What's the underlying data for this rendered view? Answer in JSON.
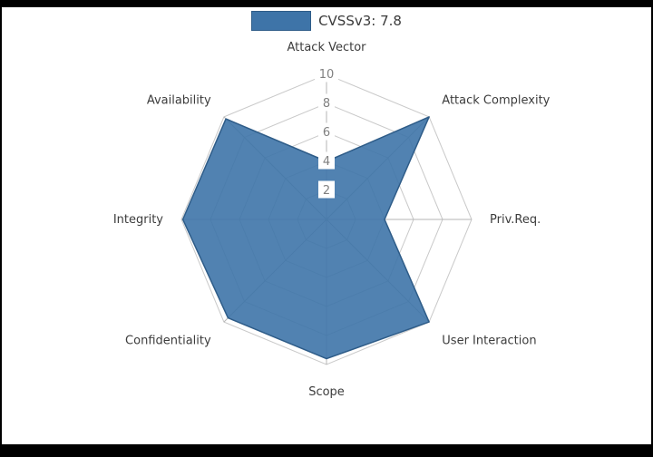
{
  "page": {
    "background_color": "#000000",
    "paper_color": "#ffffff"
  },
  "chart_data": {
    "type": "radar",
    "legend_label": "CVSSv3: 7.8",
    "score": 7.8,
    "axes": [
      "Attack Vector",
      "Attack Complexity",
      "Priv.Req.",
      "User Interaction",
      "Scope",
      "Confidentiality",
      "Integrity",
      "Availability"
    ],
    "values": [
      4,
      10,
      4,
      10,
      9.6,
      9.6,
      9.9,
      9.8
    ],
    "ticks": [
      2,
      4,
      6,
      8,
      10
    ],
    "rmax": 10,
    "grid": true,
    "legend_position": "top-center",
    "colors": {
      "fill": "#3E74A8",
      "edge": "#2e5c88",
      "grid": "#c9c9c9",
      "tick_text": "#808080",
      "label_text": "#3c3c3c"
    }
  }
}
